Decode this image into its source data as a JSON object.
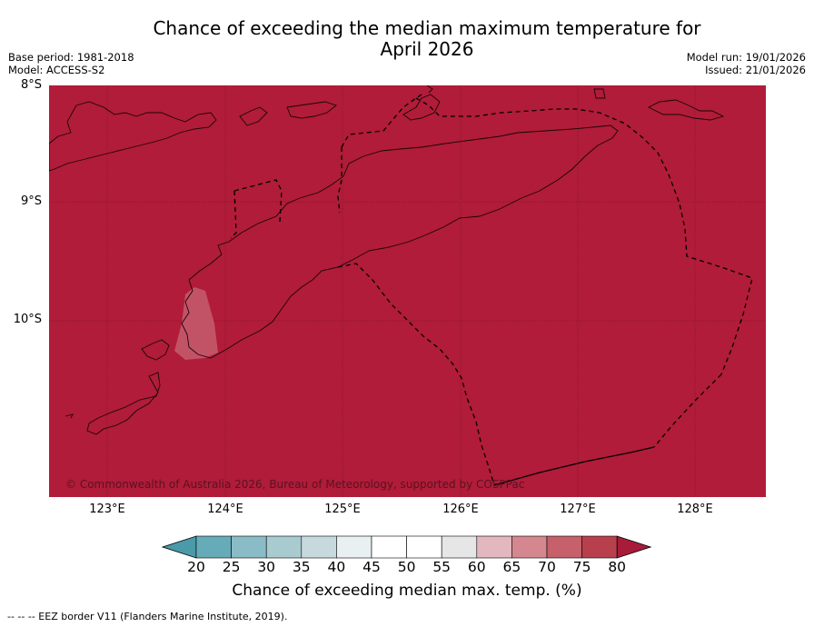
{
  "title_line1": "Chance of exceeding the median maximum temperature for",
  "title_line2": "April 2026",
  "base_period": "Base period: 1981-2018",
  "model": "Model: ACCESS-S2",
  "model_run": "Model run: 19/01/2026",
  "issued": "Issued: 21/01/2026",
  "lat_labels": [
    "8°S",
    "9°S",
    "10°S"
  ],
  "lon_labels": [
    "123°E",
    "124°E",
    "125°E",
    "126°E",
    "127°E",
    "128°E"
  ],
  "copyright": "© Commonwealth of Australia 2026, Bureau of Meteorology, supported by COSPPac",
  "colorbar": {
    "ticks": [
      "20",
      "25",
      "30",
      "35",
      "40",
      "45",
      "50",
      "55",
      "60",
      "65",
      "70",
      "75",
      "80"
    ],
    "label": "Chance of exceeding median max. temp. (%)",
    "colors": [
      "#4b9aaa",
      "#66acb8",
      "#89bcc6",
      "#a8cbd0",
      "#c8d9de",
      "#e9f0f2",
      "#ffffff",
      "#ffffff",
      "#e6e6e6",
      "#e2b7bf",
      "#d4878f",
      "#c6606b",
      "#b8404d",
      "#a61c39"
    ]
  },
  "map": {
    "background_color": "#b01c39",
    "highlight_color": "#c45a6c"
  },
  "footer": "--  --  -- EEZ border V11 (Flanders Marine Institute, 2019)."
}
